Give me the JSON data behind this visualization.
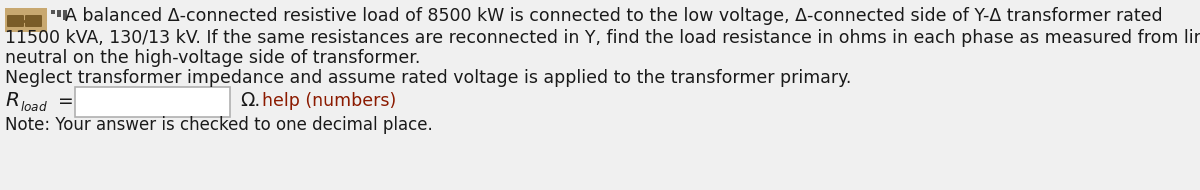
{
  "bg_color": "#f0f0f0",
  "text_color": "#1a1a1a",
  "red_color": "#8b1a00",
  "line1": "A balanced Δ-connected resistive load of 8500 kW is connected to the low voltage, Δ-connected side of Y-Δ transformer rated",
  "line2": "11500 kVA, 130/13 kV. If the same resistances are reconnected in Y, find the load resistance in ohms in each phase as measured from line to",
  "line3": "neutral on the high-voltage side of transformer.",
  "line4": "Neglect transformer impedance and assume rated voltage is applied to the transformer primary.",
  "omega_symbol": "Ω.",
  "help_text": "help (numbers)",
  "note_text": "Note: Your answer is checked to one decimal place.",
  "icon_color": "#c8a870",
  "icon_dark": "#7a5c28",
  "font_size": 12.5,
  "font_size_small": 12.0
}
